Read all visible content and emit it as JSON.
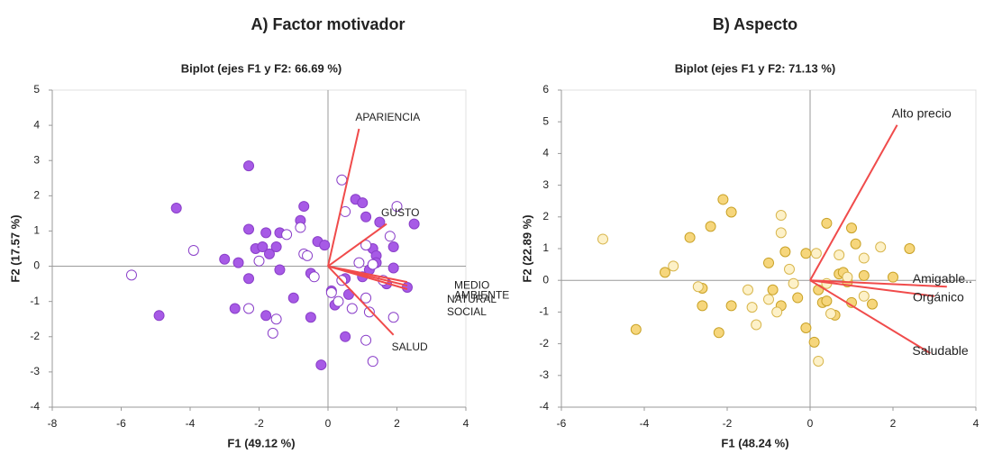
{
  "chart_data": [
    {
      "type": "biplot",
      "title": "A) Factor motivador",
      "subtitle": "Biplot (ejes F1 y F2: 66.69 %)",
      "xlabel": "F1 (49.12 %)",
      "ylabel": "F2 (17.57 %)",
      "xlim": [
        -8,
        4
      ],
      "ylim": [
        -4,
        5
      ],
      "xticks": [
        -8,
        -6,
        -4,
        -2,
        0,
        2,
        4
      ],
      "yticks": [
        -4,
        -3,
        -2,
        -1,
        0,
        1,
        2,
        3,
        4,
        5
      ],
      "series": [
        {
          "color": "#8a3fc9",
          "fill": "#a75ae6",
          "x": [
            -4.9,
            -4.4,
            -2.3,
            -3.0,
            -2.6,
            -2.7,
            -2.3,
            -2.3,
            -2.1,
            -1.9,
            -1.8,
            -1.7,
            -1.5,
            -1.4,
            -1.4,
            -1.0,
            -1.8,
            -0.8,
            -0.7,
            -0.3,
            -0.1,
            -0.5,
            -0.5,
            0.1,
            0.2,
            -0.2,
            0.5,
            0.6,
            0.5,
            0.8,
            1.0,
            1.1,
            1.5,
            1.2,
            1.3,
            1.4,
            1.4,
            1.9,
            1.9,
            2.3,
            2.5,
            1.7,
            1.0
          ],
          "values": [
            -1.4,
            1.65,
            2.85,
            0.2,
            0.1,
            -1.2,
            -0.35,
            1.05,
            0.5,
            0.55,
            0.95,
            0.35,
            0.55,
            0.95,
            -0.1,
            -0.9,
            -1.4,
            1.3,
            1.7,
            0.7,
            0.6,
            -0.2,
            -1.45,
            -0.7,
            -1.1,
            -2.8,
            -2.0,
            -0.8,
            -0.35,
            1.9,
            1.8,
            1.4,
            1.25,
            -0.1,
            0.5,
            0.3,
            0.1,
            0.55,
            -0.05,
            -0.6,
            1.2,
            -0.5,
            -0.3
          ]
        },
        {
          "color": "#8a3fc9",
          "fill": "#ffffff",
          "x": [
            -5.7,
            -3.9,
            -2.3,
            -1.5,
            -1.6,
            -2.0,
            -1.2,
            -0.8,
            -0.7,
            -0.6,
            -0.4,
            0.4,
            0.5,
            0.1,
            0.3,
            0.7,
            0.9,
            1.1,
            1.3,
            1.1,
            1.8,
            1.2,
            1.1,
            1.3,
            1.9,
            2.0,
            1.6,
            0.4
          ],
          "values": [
            -0.25,
            0.45,
            -1.2,
            -1.5,
            -1.9,
            0.15,
            0.9,
            1.1,
            0.35,
            0.3,
            -0.3,
            2.45,
            1.55,
            -0.75,
            -1.0,
            -1.2,
            0.1,
            0.6,
            0.05,
            -0.9,
            0.85,
            -1.3,
            -2.1,
            -2.7,
            -1.45,
            1.7,
            -0.4,
            -0.4
          ]
        }
      ],
      "vector_color": "#f04b4b",
      "vectors": [
        {
          "label": [
            "APARIENCIA"
          ],
          "x": 0.9,
          "y": 3.9
        },
        {
          "label": [
            "GUSTO"
          ],
          "x": 1.7,
          "y": 1.2
        },
        {
          "label": [
            "MEDIO",
            "AMBIENTE"
          ],
          "x": 2.3,
          "y": -0.45
        },
        {
          "label": [
            "NATURAL"
          ],
          "x": 2.3,
          "y": -0.55
        },
        {
          "label": [
            "SOCIAL"
          ],
          "x": 2.3,
          "y": -0.65
        },
        {
          "label": [
            "SALUD"
          ],
          "x": 1.9,
          "y": -1.95
        }
      ]
    },
    {
      "type": "biplot",
      "title": "B) Aspecto",
      "subtitle": "Biplot (ejes F1 y F2: 71.13 %)",
      "xlabel": "F1 (48.24 %)",
      "ylabel": "F2 (22.89 %)",
      "xlim": [
        -6,
        4
      ],
      "ylim": [
        -4,
        6
      ],
      "xticks": [
        -6,
        -4,
        -2,
        0,
        2,
        4
      ],
      "yticks": [
        -4,
        -3,
        -2,
        -1,
        0,
        1,
        2,
        3,
        4,
        5,
        6
      ],
      "series": [
        {
          "color": "#c9a227",
          "fill": "#f6d67c",
          "x": [
            -4.2,
            -3.5,
            -2.9,
            -2.6,
            -2.6,
            -2.4,
            -2.2,
            -2.1,
            -1.9,
            -1.9,
            -1.0,
            -0.9,
            -0.7,
            -0.6,
            -0.3,
            -0.1,
            0.2,
            0.3,
            0.4,
            0.6,
            0.7,
            0.8,
            1.0,
            1.1,
            0.9,
            1.0,
            1.3,
            1.5,
            2.0,
            2.4,
            0.1,
            -0.1,
            0.4
          ],
          "values": [
            -1.55,
            0.25,
            1.35,
            -0.25,
            -0.8,
            1.7,
            -1.65,
            2.55,
            2.15,
            -0.8,
            0.55,
            -0.3,
            -0.8,
            0.9,
            -0.55,
            0.85,
            -0.3,
            -0.7,
            1.8,
            -1.1,
            0.2,
            0.25,
            1.65,
            1.15,
            -0.05,
            -0.7,
            0.15,
            -0.75,
            0.1,
            1.0,
            -1.95,
            -1.5,
            -0.65
          ]
        },
        {
          "color": "#d8b64d",
          "fill": "#fdf1c8",
          "x": [
            -5.0,
            -3.3,
            -2.7,
            -1.5,
            -1.4,
            -1.3,
            -1.0,
            -0.8,
            -0.7,
            -0.7,
            -0.5,
            -0.4,
            0.15,
            0.2,
            0.4,
            0.5,
            0.7,
            1.3,
            1.7,
            1.3,
            0.9
          ],
          "values": [
            1.3,
            0.45,
            -0.2,
            -0.3,
            -0.85,
            -1.4,
            -0.6,
            -1.0,
            2.05,
            1.5,
            0.35,
            -0.1,
            0.85,
            -2.55,
            -0.1,
            -1.05,
            0.8,
            0.7,
            1.05,
            -0.5,
            0.1
          ]
        }
      ],
      "vector_color": "#f04b4b",
      "vectors": [
        {
          "label": [
            "Alto precio"
          ],
          "x": 2.1,
          "y": 4.9
        },
        {
          "label": [
            "Amigable.."
          ],
          "x": 3.3,
          "y": -0.2
        },
        {
          "label": [
            "Orgánico"
          ],
          "x": 3.0,
          "y": -0.5
        },
        {
          "label": [
            "Saludable"
          ],
          "x": 2.9,
          "y": -2.3
        }
      ]
    }
  ]
}
